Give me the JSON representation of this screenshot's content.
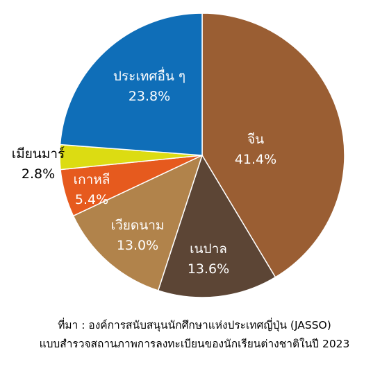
{
  "chart_data": {
    "type": "pie",
    "categories": [
      "จีน",
      "เนปาล",
      "เวียดนาม",
      "เกาหลี",
      "เมียนมาร์",
      "ประเทศอื่น ๆ"
    ],
    "values": [
      41.4,
      13.6,
      13.0,
      5.4,
      2.8,
      23.8
    ],
    "value_labels": [
      "41.4%",
      "13.6%",
      "13.0%",
      "5.4%",
      "2.8%",
      "23.8%"
    ],
    "colors": [
      "#9A5E33",
      "#5C4535",
      "#B1834B",
      "#E65A1E",
      "#DCDC12",
      "#0F6EB8"
    ],
    "label_colors": [
      "#ffffff",
      "#ffffff",
      "#ffffff",
      "#ffffff",
      "#000000",
      "#ffffff"
    ],
    "title": "",
    "start": "12 o'clock",
    "direction": "clockwise"
  },
  "source": {
    "line1": "ที่มา : องค์การสนับสนุนนักศึกษาแห่งประเทศญี่ปุ่น (JASSO)",
    "line2": "แบบสำรวจสถานภาพการลงทะเบียนของนักเรียนต่างชาติในปี 2023"
  }
}
